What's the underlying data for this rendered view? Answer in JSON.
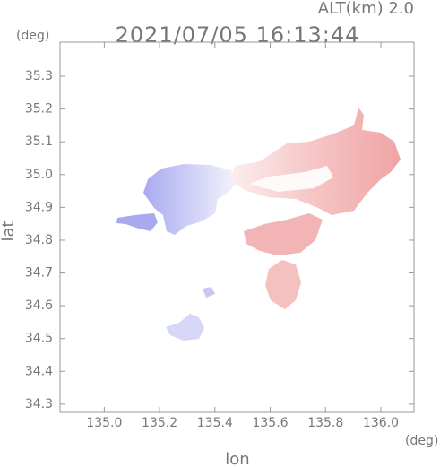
{
  "chart_data": {
    "type": "map",
    "altitude_label": "ALT(km) 2.0",
    "title": "2021/07/05 16:13:44",
    "y_unit": "(deg)",
    "x_unit": "(deg)",
    "x_label": "lon",
    "y_label": "lat",
    "xlim": [
      134.84,
      136.12
    ],
    "xticks": [
      {
        "value": 135,
        "label": "135.0"
      },
      135.2,
      135.4,
      135.6,
      135.8,
      {
        "value": 136,
        "label": "136.0"
      }
    ],
    "ylim": [
      34.275,
      35.404
    ],
    "yticks": [
      34.3,
      34.4,
      34.5,
      34.6,
      34.7,
      34.8,
      34.9,
      {
        "value": 35,
        "label": "35.0"
      },
      35.1,
      35.2,
      35.3
    ]
  }
}
